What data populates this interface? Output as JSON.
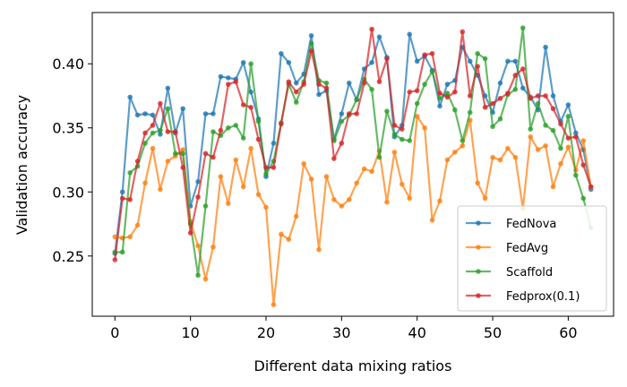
{
  "chart_data": {
    "type": "line",
    "xlabel": "Different data mixing ratios",
    "ylabel": "Validation accuracy",
    "xlim": [
      -3,
      66
    ],
    "ylim": [
      0.203,
      0.44
    ],
    "xticks": [
      0,
      10,
      20,
      30,
      40,
      50,
      60
    ],
    "yticks": [
      0.25,
      0.3,
      0.35,
      0.4
    ],
    "ytick_labels": [
      "0.25",
      "0.30",
      "0.35",
      "0.40"
    ],
    "grid": false,
    "legend_position": "lower-right",
    "series": [
      {
        "name": "FedNova",
        "color": "#1f77b4",
        "values": [
          0.252,
          0.3,
          0.374,
          0.36,
          0.361,
          0.36,
          0.345,
          0.381,
          0.346,
          0.365,
          0.289,
          0.308,
          0.361,
          0.361,
          0.39,
          0.389,
          0.388,
          0.401,
          0.378,
          0.357,
          0.312,
          0.338,
          0.408,
          0.401,
          0.385,
          0.392,
          0.422,
          0.376,
          0.379,
          0.341,
          0.361,
          0.385,
          0.372,
          0.396,
          0.401,
          0.421,
          0.405,
          0.343,
          0.352,
          0.423,
          0.402,
          0.406,
          0.395,
          0.367,
          0.384,
          0.387,
          0.413,
          0.402,
          0.391,
          0.375,
          0.362,
          0.385,
          0.402,
          0.402,
          0.381,
          0.374,
          0.364,
          0.413,
          0.375,
          0.355,
          0.368,
          0.346,
          0.333,
          0.302
        ]
      },
      {
        "name": "FedAvg",
        "color": "#ff7f0e",
        "values": [
          0.265,
          0.264,
          0.265,
          0.274,
          0.307,
          0.334,
          0.302,
          0.324,
          0.328,
          0.333,
          0.277,
          0.258,
          0.232,
          0.257,
          0.312,
          0.291,
          0.325,
          0.304,
          0.334,
          0.298,
          0.288,
          0.212,
          0.267,
          0.263,
          0.281,
          0.322,
          0.31,
          0.255,
          0.312,
          0.294,
          0.289,
          0.294,
          0.307,
          0.318,
          0.316,
          0.332,
          0.292,
          0.331,
          0.306,
          0.295,
          0.359,
          0.35,
          0.278,
          0.293,
          0.325,
          0.331,
          0.336,
          0.356,
          0.307,
          0.295,
          0.327,
          0.325,
          0.334,
          0.327,
          0.287,
          0.343,
          0.333,
          0.336,
          0.304,
          0.322,
          0.335,
          0.317,
          0.34,
          0.304
        ]
      },
      {
        "name": "Scaffold",
        "color": "#2ca02c",
        "values": [
          0.253,
          0.253,
          0.315,
          0.32,
          0.338,
          0.346,
          0.348,
          0.365,
          0.33,
          0.33,
          0.275,
          0.235,
          0.289,
          0.347,
          0.344,
          0.35,
          0.352,
          0.342,
          0.4,
          0.355,
          0.314,
          0.324,
          0.354,
          0.384,
          0.37,
          0.386,
          0.416,
          0.387,
          0.385,
          0.34,
          0.355,
          0.36,
          0.372,
          0.388,
          0.38,
          0.327,
          0.363,
          0.345,
          0.341,
          0.34,
          0.369,
          0.384,
          0.394,
          0.373,
          0.377,
          0.364,
          0.34,
          0.362,
          0.408,
          0.404,
          0.351,
          0.357,
          0.376,
          0.38,
          0.428,
          0.349,
          0.369,
          0.352,
          0.348,
          0.334,
          0.359,
          0.313,
          0.295,
          0.272
        ]
      },
      {
        "name": "Fedprox(0.1)",
        "color": "#d62728",
        "values": [
          0.247,
          0.295,
          0.294,
          0.324,
          0.346,
          0.352,
          0.369,
          0.347,
          0.347,
          0.319,
          0.268,
          0.296,
          0.33,
          0.327,
          0.348,
          0.384,
          0.386,
          0.368,
          0.366,
          0.341,
          0.319,
          0.319,
          0.353,
          0.386,
          0.378,
          0.384,
          0.41,
          0.384,
          0.381,
          0.326,
          0.338,
          0.361,
          0.361,
          0.385,
          0.427,
          0.386,
          0.404,
          0.352,
          0.349,
          0.378,
          0.379,
          0.407,
          0.408,
          0.377,
          0.374,
          0.378,
          0.425,
          0.375,
          0.398,
          0.366,
          0.369,
          0.373,
          0.377,
          0.391,
          0.396,
          0.373,
          0.375,
          0.375,
          0.365,
          0.353,
          0.342,
          0.343,
          0.321,
          0.304
        ]
      }
    ]
  }
}
